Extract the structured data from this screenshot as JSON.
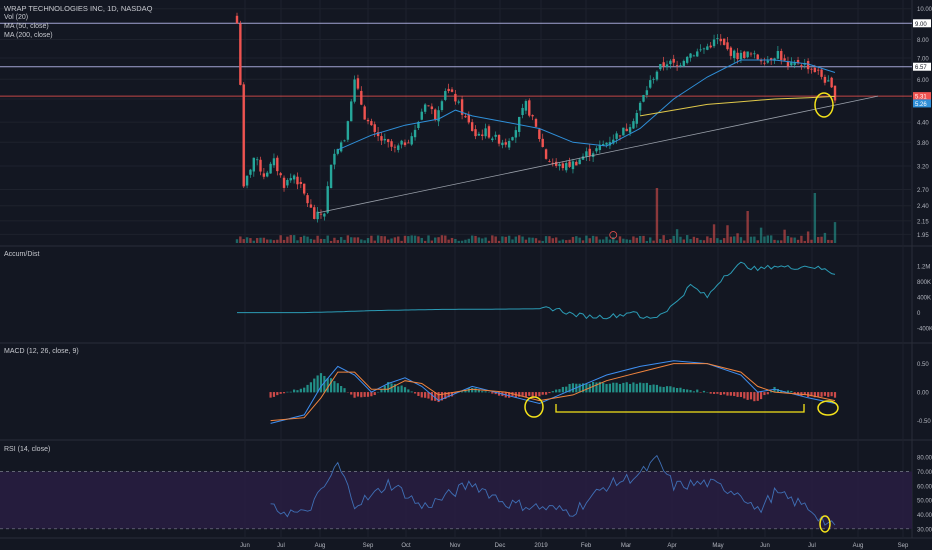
{
  "header": {
    "symbol_title": "WRAP TECHNOLOGIES INC, 1D, NASDAQ",
    "vol_label": "Vol (20)",
    "ma50_label": "MA (50, close)",
    "ma200_label": "MA (200, close)"
  },
  "panes": {
    "accum_label": "Accum/Dist",
    "macd_label": "MACD (12, 26, close, 9)",
    "rsi_label": "RSI (14, close)"
  },
  "colors": {
    "background": "#131722",
    "up_candle": "#26a69a",
    "down_candle": "#ef5350",
    "ma50": "#2f8fd8",
    "ma200": "#e0c84a",
    "trendline": "#9aa0aa",
    "macd_line": "#3e8ef0",
    "signal_line": "#f0843e",
    "rsi_line": "#3f6fb5",
    "rsi_band": "#2a1e45",
    "highlight": "#f5e31a"
  },
  "chart_data": [
    {
      "type": "candlestick",
      "title": "WRAP TECHNOLOGIES INC, 1D, NASDAQ",
      "x_labels": [
        "Jun",
        "Jul",
        "Aug",
        "Sep",
        "Oct",
        "Nov",
        "Dec",
        "2019",
        "Feb",
        "Mar",
        "Apr",
        "May",
        "Jun",
        "Jul",
        "Aug",
        "Sep"
      ],
      "y_ticks": [
        "10.00",
        "8.00",
        "7.00",
        "6.00",
        "5.20",
        "4.40",
        "3.80",
        "3.20",
        "2.70",
        "2.40",
        "2.15",
        "1.95"
      ],
      "price_tags": [
        "9.00",
        "6.57",
        "5.31",
        "5.26"
      ],
      "horizontal_levels": [
        9.0,
        6.57,
        5.31
      ],
      "close_path": [
        [
          0,
          9.0
        ],
        [
          2,
          2.7
        ],
        [
          5,
          3.4
        ],
        [
          8,
          3.0
        ],
        [
          11,
          3.3
        ],
        [
          14,
          2.8
        ],
        [
          17,
          3.0
        ],
        [
          20,
          2.6
        ],
        [
          23,
          2.2
        ],
        [
          26,
          2.3
        ],
        [
          29,
          3.6
        ],
        [
          32,
          3.9
        ],
        [
          35,
          5.9
        ],
        [
          38,
          4.6
        ],
        [
          41,
          4.0
        ],
        [
          44,
          3.8
        ],
        [
          47,
          3.6
        ],
        [
          50,
          3.8
        ],
        [
          53,
          4.1
        ],
        [
          56,
          5.1
        ],
        [
          59,
          4.6
        ],
        [
          62,
          5.6
        ],
        [
          65,
          5.2
        ],
        [
          68,
          4.5
        ],
        [
          71,
          4.0
        ],
        [
          74,
          4.1
        ],
        [
          77,
          3.9
        ],
        [
          80,
          3.8
        ],
        [
          83,
          4.2
        ],
        [
          86,
          5.0
        ],
        [
          89,
          4.2
        ],
        [
          92,
          3.4
        ],
        [
          95,
          3.2
        ],
        [
          98,
          3.2
        ],
        [
          101,
          3.3
        ],
        [
          104,
          3.5
        ],
        [
          107,
          3.6
        ],
        [
          110,
          3.8
        ],
        [
          113,
          4.0
        ],
        [
          116,
          4.2
        ],
        [
          119,
          4.7
        ],
        [
          122,
          5.6
        ],
        [
          125,
          6.4
        ],
        [
          128,
          6.8
        ],
        [
          131,
          6.6
        ],
        [
          134,
          7.2
        ],
        [
          137,
          7.3
        ],
        [
          140,
          7.6
        ],
        [
          143,
          8.0
        ],
        [
          146,
          7.4
        ],
        [
          149,
          7.1
        ],
        [
          152,
          7.2
        ],
        [
          155,
          7.0
        ],
        [
          158,
          6.9
        ],
        [
          161,
          7.3
        ],
        [
          164,
          6.5
        ],
        [
          167,
          6.8
        ],
        [
          170,
          6.6
        ],
        [
          173,
          6.3
        ],
        [
          176,
          5.8
        ],
        [
          178,
          5.3
        ]
      ],
      "ma50_path": [
        [
          30,
          3.6
        ],
        [
          40,
          4.0
        ],
        [
          50,
          4.3
        ],
        [
          60,
          4.5
        ],
        [
          65,
          4.8
        ],
        [
          70,
          4.6
        ],
        [
          80,
          4.4
        ],
        [
          90,
          4.2
        ],
        [
          100,
          3.8
        ],
        [
          110,
          3.7
        ],
        [
          120,
          4.2
        ],
        [
          130,
          5.2
        ],
        [
          140,
          6.1
        ],
        [
          150,
          6.9
        ],
        [
          160,
          6.9
        ],
        [
          170,
          6.7
        ],
        [
          178,
          6.3
        ]
      ],
      "ma200_path": [
        [
          120,
          4.6
        ],
        [
          130,
          4.8
        ],
        [
          140,
          5.0
        ],
        [
          150,
          5.1
        ],
        [
          160,
          5.2
        ],
        [
          170,
          5.25
        ],
        [
          178,
          5.3
        ]
      ],
      "volume_spikes": [
        "Jul-19 spike",
        "Jul-2019 large spike"
      ]
    },
    {
      "type": "line",
      "title": "Accum/Dist",
      "y_ticks": [
        "1.2M",
        "800K",
        "400K",
        "0",
        "-400K"
      ],
      "values": [
        [
          0,
          0.0
        ],
        [
          20,
          0.0
        ],
        [
          30,
          0.02
        ],
        [
          40,
          0.05
        ],
        [
          60,
          0.08
        ],
        [
          80,
          0.09
        ],
        [
          95,
          0.1
        ],
        [
          100,
          -0.05
        ],
        [
          105,
          -0.1
        ],
        [
          110,
          -0.1
        ],
        [
          115,
          -0.05
        ],
        [
          118,
          0.06
        ],
        [
          120,
          -0.15
        ],
        [
          125,
          -0.1
        ],
        [
          130,
          0.2
        ],
        [
          135,
          0.7
        ],
        [
          140,
          0.4
        ],
        [
          145,
          0.95
        ],
        [
          150,
          1.25
        ],
        [
          155,
          1.1
        ],
        [
          160,
          1.2
        ],
        [
          165,
          1.15
        ],
        [
          170,
          1.2
        ],
        [
          175,
          1.1
        ],
        [
          178,
          1.0
        ]
      ]
    },
    {
      "type": "line",
      "title": "MACD (12, 26, close, 9)",
      "y_ticks": [
        "0.50",
        "0.00",
        "-0.50"
      ],
      "series": [
        {
          "name": "MACD",
          "values": [
            [
              10,
              -0.55
            ],
            [
              20,
              -0.4
            ],
            [
              25,
              0.1
            ],
            [
              30,
              0.45
            ],
            [
              35,
              0.3
            ],
            [
              40,
              0.0
            ],
            [
              45,
              0.15
            ],
            [
              50,
              0.25
            ],
            [
              55,
              0.1
            ],
            [
              60,
              -0.15
            ],
            [
              70,
              0.1
            ],
            [
              80,
              -0.05
            ],
            [
              90,
              -0.2
            ],
            [
              100,
              0.05
            ],
            [
              110,
              0.3
            ],
            [
              120,
              0.45
            ],
            [
              130,
              0.55
            ],
            [
              140,
              0.5
            ],
            [
              150,
              0.3
            ],
            [
              155,
              0.0
            ],
            [
              160,
              0.05
            ],
            [
              170,
              -0.1
            ],
            [
              178,
              -0.2
            ]
          ]
        },
        {
          "name": "Signal",
          "values": [
            [
              10,
              -0.5
            ],
            [
              20,
              -0.45
            ],
            [
              25,
              -0.1
            ],
            [
              30,
              0.35
            ],
            [
              35,
              0.35
            ],
            [
              40,
              0.05
            ],
            [
              45,
              0.05
            ],
            [
              50,
              0.2
            ],
            [
              55,
              0.15
            ],
            [
              60,
              -0.05
            ],
            [
              70,
              0.05
            ],
            [
              80,
              0.0
            ],
            [
              90,
              -0.15
            ],
            [
              100,
              -0.05
            ],
            [
              110,
              0.2
            ],
            [
              120,
              0.35
            ],
            [
              130,
              0.5
            ],
            [
              140,
              0.5
            ],
            [
              150,
              0.35
            ],
            [
              155,
              0.1
            ],
            [
              160,
              0.0
            ],
            [
              170,
              -0.05
            ],
            [
              178,
              -0.15
            ]
          ]
        }
      ]
    },
    {
      "type": "line",
      "title": "RSI (14, close)",
      "y_ticks": [
        "80.00",
        "70.00",
        "60.00",
        "50.00",
        "40.00",
        "30.00"
      ],
      "values": [
        [
          10,
          44
        ],
        [
          20,
          40
        ],
        [
          25,
          55
        ],
        [
          30,
          75
        ],
        [
          35,
          48
        ],
        [
          40,
          52
        ],
        [
          45,
          62
        ],
        [
          50,
          55
        ],
        [
          55,
          45
        ],
        [
          60,
          50
        ],
        [
          70,
          62
        ],
        [
          80,
          48
        ],
        [
          90,
          45
        ],
        [
          100,
          42
        ],
        [
          110,
          60
        ],
        [
          120,
          68
        ],
        [
          125,
          78
        ],
        [
          130,
          60
        ],
        [
          140,
          62
        ],
        [
          150,
          55
        ],
        [
          155,
          42
        ],
        [
          160,
          55
        ],
        [
          165,
          50
        ],
        [
          170,
          45
        ],
        [
          175,
          35
        ],
        [
          178,
          30
        ]
      ]
    }
  ]
}
